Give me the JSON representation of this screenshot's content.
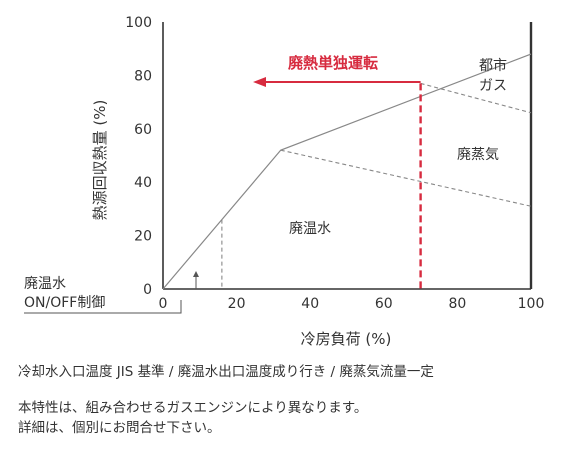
{
  "chart_data": {
    "type": "line",
    "xlabel": "冷房負荷 (%)",
    "ylabel": "熱源回収熱量 (%)",
    "xlim": [
      0,
      100
    ],
    "ylim": [
      0,
      100
    ],
    "x_ticks": [
      "0",
      "20",
      "40",
      "60",
      "80",
      "100"
    ],
    "y_ticks": [
      "0",
      "20",
      "40",
      "60",
      "80",
      "100"
    ],
    "total_line": [
      [
        0,
        0
      ],
      [
        32,
        52
      ],
      [
        100,
        88
      ]
    ],
    "boundary_lines": [
      {
        "points": [
          [
            32,
            52
          ],
          [
            100,
            31
          ]
        ],
        "style": "dashed"
      },
      {
        "points": [
          [
            70,
            77
          ],
          [
            100,
            66
          ]
        ],
        "style": "dashed"
      }
    ],
    "onoff_threshold_x": 16,
    "onoff_threshold_y": 26,
    "waste_heat_only_limit_x": 70,
    "regions": {
      "waste_water": "廃温水",
      "waste_steam": "廃蒸気",
      "city_gas_line1": "都市",
      "city_gas_line2": "ガス"
    },
    "annotations": {
      "waste_heat_only": "廃熱単独運転",
      "onoff_line1": "廃温水",
      "onoff_line2": "ON/OFF制御"
    },
    "colors": {
      "accent": "#d72b3f",
      "line": "#888888",
      "axis": "#333333"
    }
  },
  "notes": {
    "conditions": "冷却水入口温度 JIS 基準 / 廃温水出口温度成り行き / 廃蒸気流量一定",
    "disclaimer_line1": "本特性は、組み合わせるガスエンジンにより異なります。",
    "disclaimer_line2": "詳細は、個別にお問合せ下さい。"
  }
}
